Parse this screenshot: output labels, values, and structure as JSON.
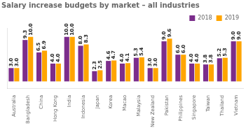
{
  "chart_data": {
    "type": "bar",
    "title": "Salary increase budgets by market – all industries",
    "categories": [
      "Australia",
      "Bangladesh",
      "China",
      "Hong Kong",
      "India",
      "Indonesia",
      "Japan",
      "Korea",
      "Macao",
      "Malaysia",
      "New Zealand",
      "Pakistan",
      "Philippines",
      "Singapore",
      "Taiwan",
      "Thailand",
      "Vietnam"
    ],
    "series": [
      {
        "name": "2018",
        "color": "#7B2D8B",
        "values": [
          3.0,
          9.3,
          6.5,
          4.0,
          10.0,
          8.0,
          2.3,
          4.6,
          4.0,
          5.3,
          3.0,
          9.0,
          6.0,
          4.0,
          3.8,
          5.2,
          9.0
        ],
        "value_labels": [
          "3.0",
          "9.3",
          "6.5",
          "4.0",
          "10.0",
          "8.0",
          "2.3",
          "4.6",
          "4.0",
          "5.3",
          "3.0",
          "9.0",
          "6.0",
          "4.0",
          "3.8",
          "5.2",
          "9.0"
        ]
      },
      {
        "name": "2019",
        "color": "#FFA500",
        "values": [
          3.0,
          10.0,
          6.9,
          4.0,
          10.0,
          8.3,
          2.5,
          4.7,
          4.1,
          5.4,
          3.0,
          9.6,
          6.0,
          4.0,
          3.8,
          5.3,
          9.0
        ],
        "value_labels": [
          "3.0",
          "10.0",
          "6.9",
          "4.0",
          "10.0",
          "8.3",
          "2.5",
          "4.7",
          "4.1",
          "5.4",
          "3.0",
          "9.6",
          "6.0",
          "4.0",
          "3.8",
          "5.3",
          "9.0"
        ]
      }
    ],
    "ylim": [
      -1.5,
      12
    ],
    "grid": false,
    "legend": "upper right",
    "data_labels": true,
    "tick_labels": "x"
  }
}
